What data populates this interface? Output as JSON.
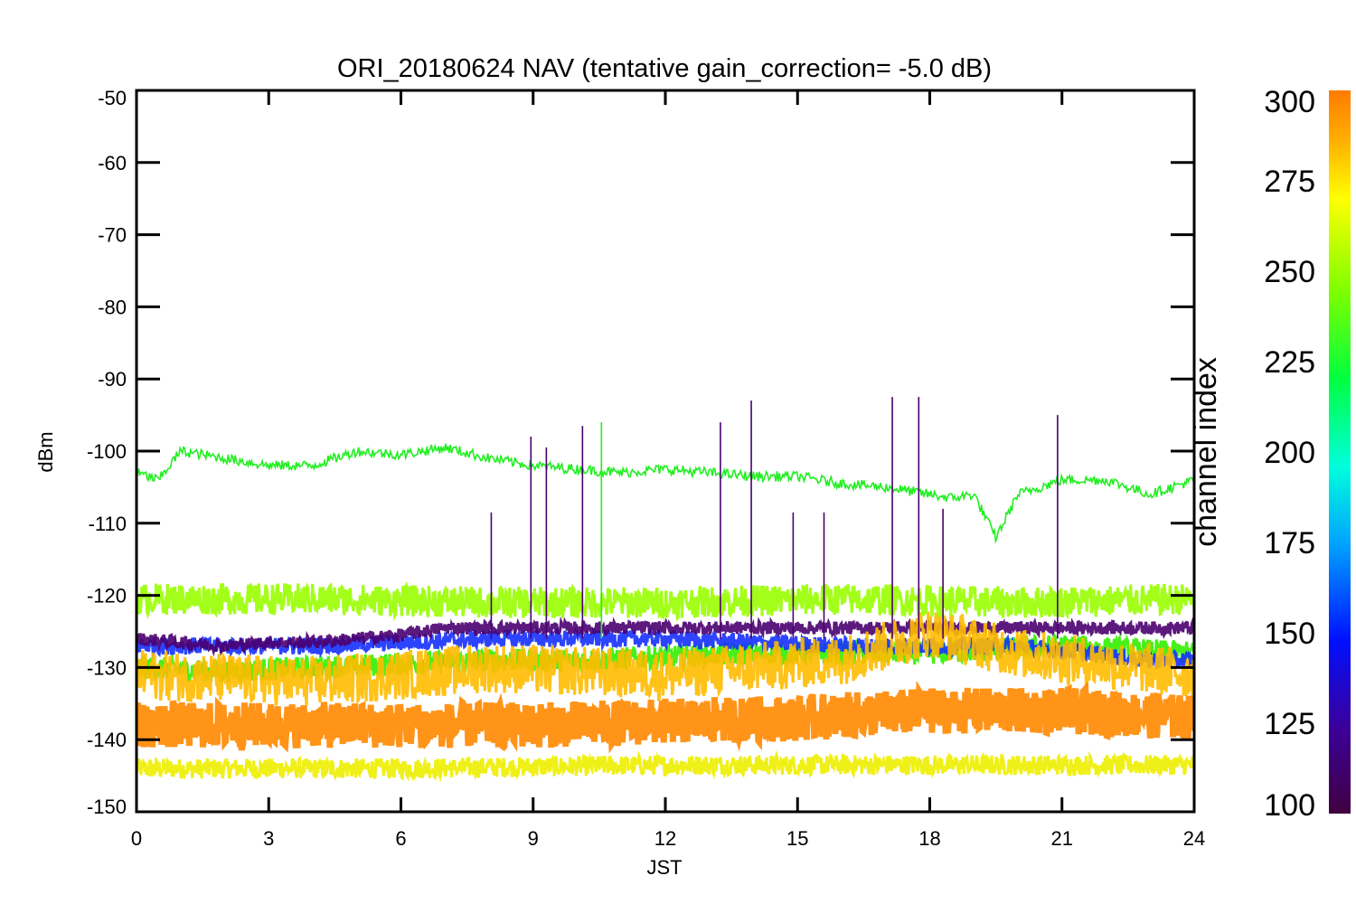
{
  "chart_data": {
    "type": "line",
    "title": "ORI_20180624 NAV (tentative gain_correction= -5.0 dB)",
    "xlabel": "JST",
    "ylabel": "dBm",
    "xlim": [
      0,
      24
    ],
    "ylim": [
      -150,
      -50
    ],
    "x_ticks": [
      "0",
      "3",
      "6",
      "9",
      "12",
      "15",
      "18",
      "21",
      "24"
    ],
    "y_ticks": [
      "-50",
      "-60",
      "-70",
      "-80",
      "-90",
      "-100",
      "-110",
      "-120",
      "-130",
      "-140",
      "-150"
    ],
    "grid": false,
    "colorbar": {
      "label": "channel index",
      "range": [
        100,
        300
      ],
      "ticks": [
        "100",
        "125",
        "150",
        "175",
        "200",
        "225",
        "250",
        "275",
        "300"
      ],
      "colormap": [
        "#400040",
        "#3b009b",
        "#0010ff",
        "#00a0ff",
        "#00ffdc",
        "#00ff40",
        "#7cff00",
        "#ffff00",
        "#ffb000",
        "#ff7a00"
      ]
    },
    "series": [
      {
        "channel": 225,
        "color": "#22ee22",
        "x": [
          0,
          0.5,
          1,
          1.5,
          2,
          3,
          4,
          5,
          6,
          7,
          8,
          9,
          10,
          11,
          12,
          13,
          14,
          15,
          16,
          17,
          18,
          18.5,
          19,
          19.5,
          20,
          21,
          22,
          23,
          24
        ],
        "y": [
          -103,
          -104,
          -100,
          -100.5,
          -101,
          -102,
          -102,
          -100,
          -100.5,
          -99.5,
          -101,
          -102,
          -102.5,
          -103,
          -102.5,
          -103,
          -103.5,
          -103.5,
          -104.5,
          -105,
          -106,
          -106.5,
          -106,
          -112,
          -106,
          -104,
          -104,
          -106,
          -104
        ]
      },
      {
        "channel": 260,
        "color": "#99ff00",
        "x": [
          0,
          4,
          8,
          12,
          16,
          20,
          24
        ],
        "y": [
          -120.5,
          -120.5,
          -121,
          -121,
          -120.5,
          -121,
          -120.5
        ]
      },
      {
        "channel": 110,
        "color": "#4a0070",
        "x": [
          0,
          1,
          2,
          3,
          4,
          5,
          6,
          7,
          8
        ],
        "y": [
          -126,
          -126.5,
          -127,
          -126.5,
          -126.5,
          -126,
          -125.5,
          -124.5,
          -124.5
        ]
      },
      {
        "channel": 140,
        "color": "#1530ff",
        "x": [
          0,
          4,
          8,
          12,
          16,
          20,
          23,
          24
        ],
        "y": [
          -127,
          -127,
          -126,
          -126,
          -127,
          -127,
          -129,
          -129
        ]
      },
      {
        "channel": 230,
        "color": "#33ee00",
        "x": [
          0,
          2,
          4,
          6,
          8,
          10,
          14,
          18,
          21,
          24
        ],
        "y": [
          -130,
          -130.5,
          -130,
          -129.5,
          -129,
          -129,
          -128,
          -128,
          -127,
          -128
        ]
      },
      {
        "channel": 285,
        "color": "#ffbb00",
        "x": [
          0,
          4,
          8,
          12,
          16,
          18,
          20,
          24
        ],
        "y": [
          -131,
          -132,
          -130,
          -131,
          -129,
          -125,
          -128,
          -131
        ]
      },
      {
        "channel": 295,
        "color": "#ff8800",
        "x": [
          0,
          3,
          6,
          9,
          12,
          15,
          18,
          21,
          24
        ],
        "y": [
          -138,
          -138,
          -138,
          -138,
          -137.5,
          -137,
          -136,
          -136,
          -137
        ]
      },
      {
        "channel": 270,
        "color": "#eeee00",
        "x": [
          0,
          6,
          12,
          18,
          24
        ],
        "y": [
          -144,
          -144,
          -143.5,
          -143.5,
          -143.5
        ]
      }
    ],
    "spikes": [
      {
        "x": 8.05,
        "y": -108.5,
        "color": "#4a0070"
      },
      {
        "x": 8.95,
        "y": -98,
        "color": "#4a0070"
      },
      {
        "x": 9.3,
        "y": -99.5,
        "color": "#4a0070"
      },
      {
        "x": 10.12,
        "y": -96.5,
        "color": "#4a0070"
      },
      {
        "x": 10.55,
        "y": -96,
        "color": "#22ee22"
      },
      {
        "x": 13.25,
        "y": -96,
        "color": "#4a0070"
      },
      {
        "x": 13.95,
        "y": -93,
        "color": "#4a0070"
      },
      {
        "x": 14.9,
        "y": -108.5,
        "color": "#4a0070"
      },
      {
        "x": 15.6,
        "y": -108.5,
        "color": "#4a0070"
      },
      {
        "x": 17.15,
        "y": -92.5,
        "color": "#4a0070"
      },
      {
        "x": 17.75,
        "y": -92.5,
        "color": "#4a0070"
      },
      {
        "x": 18.3,
        "y": -108,
        "color": "#4a0070"
      },
      {
        "x": 20.9,
        "y": -95,
        "color": "#4a0070"
      }
    ]
  }
}
